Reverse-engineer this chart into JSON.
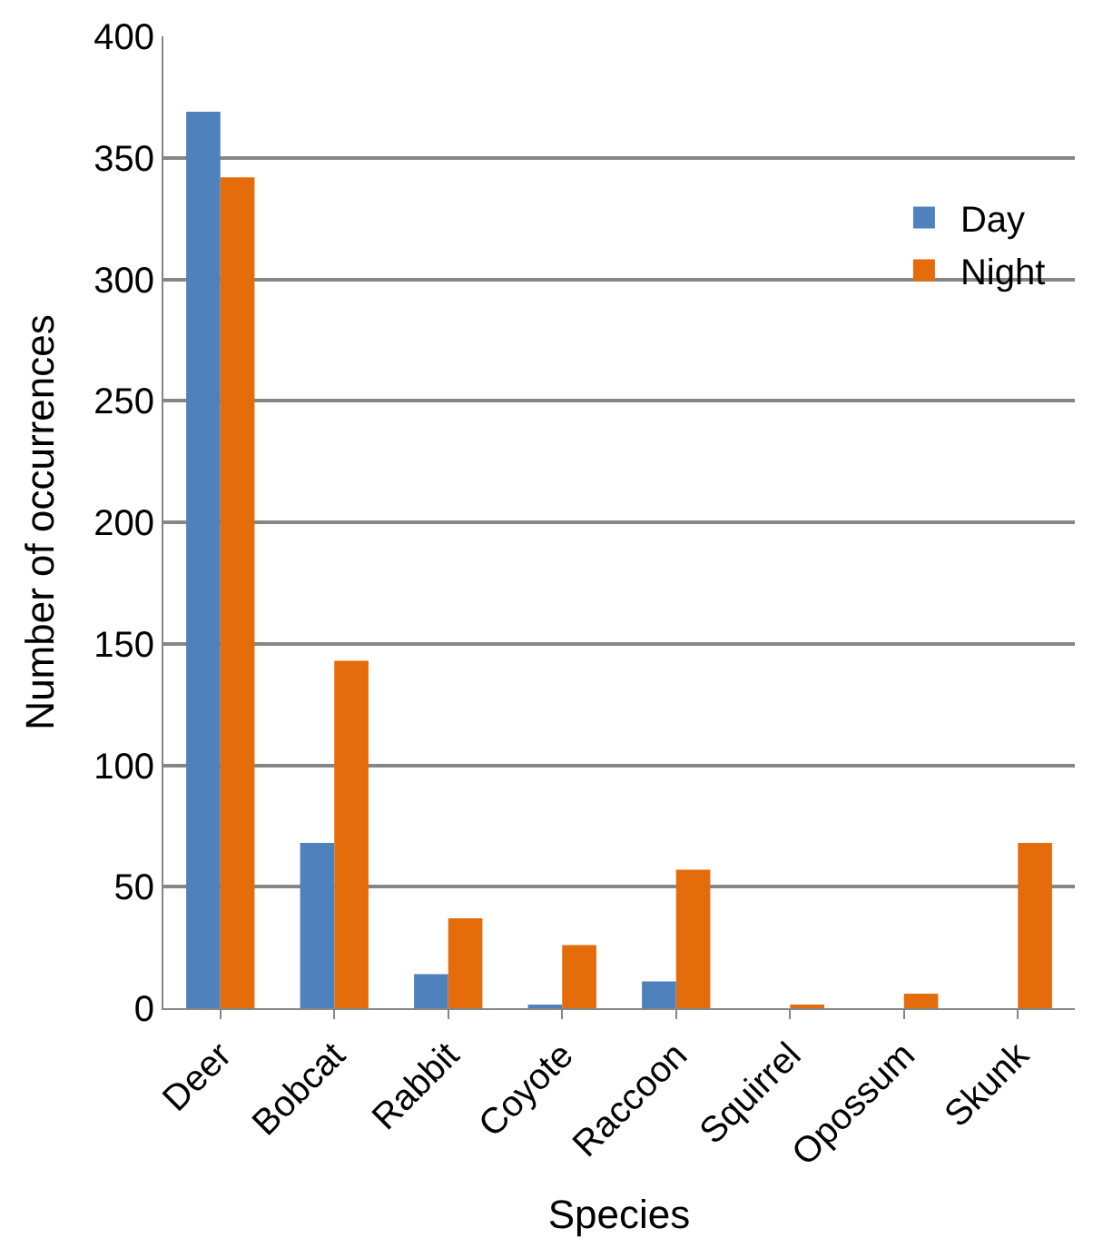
{
  "chart_data": {
    "type": "bar",
    "xlabel": "Species",
    "ylabel": "Number of occurrences",
    "categories": [
      "Deer",
      "Bobcat",
      "Rabbit",
      "Coyote",
      "Raccoon",
      "Squirrel",
      "Opossum",
      "Skunk"
    ],
    "series": [
      {
        "name": "Day",
        "color": "#4f81bd",
        "values": [
          369,
          68,
          14,
          1,
          11,
          0,
          0,
          0
        ]
      },
      {
        "name": "Night",
        "color": "#e46c0a",
        "values": [
          342,
          143,
          37,
          26,
          57,
          1,
          6,
          68
        ]
      }
    ],
    "ylim": [
      0,
      400
    ],
    "yticks": [
      0,
      50,
      100,
      150,
      200,
      250,
      300,
      350,
      400
    ],
    "grid": "y",
    "legend": "top right"
  }
}
